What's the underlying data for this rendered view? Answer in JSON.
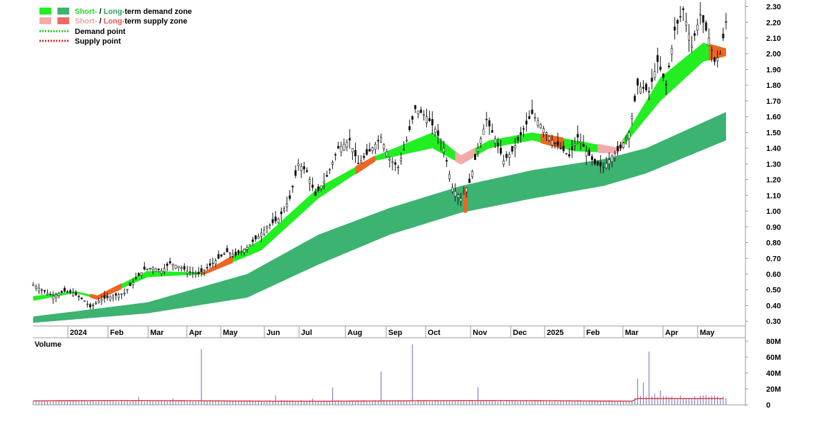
{
  "legend": {
    "demand_zone": {
      "short": "Short-",
      "sep": " / ",
      "long": "Long-",
      "rest": "term demand zone"
    },
    "supply_zone": {
      "short": "Short-",
      "sep": " / ",
      "long": "Long-",
      "rest": "term supply zone"
    },
    "demand_point": "Demand point",
    "supply_point": "Supply point"
  },
  "colors": {
    "short_demand": "#22ee22",
    "long_demand": "#3cb371",
    "short_supply": "#f4aaaa",
    "long_supply": "#ee6a6a",
    "crossover": "#ee6622",
    "demand_point": "#22cc22",
    "supply_point": "#dd2222",
    "volume_bar": "#8080c8",
    "volume_avg": "#dd3333",
    "volume_label": "#6666aa"
  },
  "chart_data": [
    {
      "type": "candlestick",
      "title": "",
      "y_ticks": [
        "2.30",
        "2.20",
        "2.10",
        "2.00",
        "1.90",
        "1.80",
        "1.70",
        "1.60",
        "1.50",
        "1.40",
        "1.30",
        "1.20",
        "1.10",
        "1.00",
        "0.90",
        "0.80",
        "0.70",
        "0.60",
        "0.50",
        "0.40",
        "0.30"
      ],
      "ylim": [
        0.27,
        2.32
      ],
      "x_labels": [
        "2024",
        "Feb",
        "Mar",
        "Apr",
        "May",
        "Jun",
        "Jul",
        "Aug",
        "Sep",
        "Oct",
        "Nov",
        "Dec",
        "2025",
        "Feb",
        "Mar",
        "Apr",
        "May"
      ],
      "price_path": [
        {
          "d": 0,
          "v": 0.53
        },
        {
          "d": 8,
          "v": 0.49
        },
        {
          "d": 14,
          "v": 0.46
        },
        {
          "d": 22,
          "v": 0.49
        },
        {
          "d": 28,
          "v": 0.48
        },
        {
          "d": 36,
          "v": 0.43
        },
        {
          "d": 40,
          "v": 0.39
        },
        {
          "d": 48,
          "v": 0.44
        },
        {
          "d": 56,
          "v": 0.46
        },
        {
          "d": 64,
          "v": 0.48
        },
        {
          "d": 72,
          "v": 0.57
        },
        {
          "d": 78,
          "v": 0.63
        },
        {
          "d": 84,
          "v": 0.64
        },
        {
          "d": 90,
          "v": 0.62
        },
        {
          "d": 96,
          "v": 0.67
        },
        {
          "d": 102,
          "v": 0.65
        },
        {
          "d": 108,
          "v": 0.62
        },
        {
          "d": 116,
          "v": 0.6
        },
        {
          "d": 122,
          "v": 0.64
        },
        {
          "d": 130,
          "v": 0.7
        },
        {
          "d": 136,
          "v": 0.74
        },
        {
          "d": 142,
          "v": 0.72
        },
        {
          "d": 150,
          "v": 0.77
        },
        {
          "d": 158,
          "v": 0.84
        },
        {
          "d": 164,
          "v": 0.9
        },
        {
          "d": 172,
          "v": 0.95
        },
        {
          "d": 180,
          "v": 1.08
        },
        {
          "d": 186,
          "v": 1.3
        },
        {
          "d": 192,
          "v": 1.25
        },
        {
          "d": 198,
          "v": 1.1
        },
        {
          "d": 206,
          "v": 1.22
        },
        {
          "d": 214,
          "v": 1.4
        },
        {
          "d": 222,
          "v": 1.45
        },
        {
          "d": 228,
          "v": 1.3
        },
        {
          "d": 236,
          "v": 1.38
        },
        {
          "d": 244,
          "v": 1.47
        },
        {
          "d": 250,
          "v": 1.33
        },
        {
          "d": 256,
          "v": 1.28
        },
        {
          "d": 262,
          "v": 1.45
        },
        {
          "d": 268,
          "v": 1.65
        },
        {
          "d": 276,
          "v": 1.6
        },
        {
          "d": 282,
          "v": 1.52
        },
        {
          "d": 288,
          "v": 1.4
        },
        {
          "d": 294,
          "v": 1.15
        },
        {
          "d": 300,
          "v": 1.08
        },
        {
          "d": 306,
          "v": 1.18
        },
        {
          "d": 312,
          "v": 1.4
        },
        {
          "d": 318,
          "v": 1.58
        },
        {
          "d": 324,
          "v": 1.46
        },
        {
          "d": 330,
          "v": 1.32
        },
        {
          "d": 336,
          "v": 1.38
        },
        {
          "d": 344,
          "v": 1.52
        },
        {
          "d": 350,
          "v": 1.62
        },
        {
          "d": 356,
          "v": 1.55
        },
        {
          "d": 364,
          "v": 1.45
        },
        {
          "d": 370,
          "v": 1.4
        },
        {
          "d": 376,
          "v": 1.35
        },
        {
          "d": 382,
          "v": 1.47
        },
        {
          "d": 388,
          "v": 1.38
        },
        {
          "d": 394,
          "v": 1.3
        },
        {
          "d": 400,
          "v": 1.28
        },
        {
          "d": 406,
          "v": 1.35
        },
        {
          "d": 412,
          "v": 1.4
        },
        {
          "d": 418,
          "v": 1.5
        },
        {
          "d": 424,
          "v": 1.8
        },
        {
          "d": 432,
          "v": 1.76
        },
        {
          "d": 438,
          "v": 1.95
        },
        {
          "d": 444,
          "v": 1.8
        },
        {
          "d": 450,
          "v": 2.15
        },
        {
          "d": 456,
          "v": 2.28
        },
        {
          "d": 462,
          "v": 2.05
        },
        {
          "d": 468,
          "v": 2.25
        },
        {
          "d": 474,
          "v": 2.1
        },
        {
          "d": 478,
          "v": 1.95
        },
        {
          "d": 482,
          "v": 2.0
        },
        {
          "d": 486,
          "v": 2.2
        }
      ],
      "short_zone": [
        {
          "d": 0,
          "lo": 0.43,
          "hi": 0.46
        },
        {
          "d": 30,
          "lo": 0.48,
          "hi": 0.49
        },
        {
          "d": 45,
          "lo": 0.44,
          "hi": 0.46
        },
        {
          "d": 80,
          "lo": 0.58,
          "hi": 0.62
        },
        {
          "d": 120,
          "lo": 0.6,
          "hi": 0.61
        },
        {
          "d": 160,
          "lo": 0.75,
          "hi": 0.82
        },
        {
          "d": 200,
          "lo": 1.08,
          "hi": 1.15
        },
        {
          "d": 240,
          "lo": 1.32,
          "hi": 1.35
        },
        {
          "d": 280,
          "lo": 1.4,
          "hi": 1.5
        },
        {
          "d": 300,
          "lo": 1.3,
          "hi": 1.35
        },
        {
          "d": 320,
          "lo": 1.4,
          "hi": 1.45
        },
        {
          "d": 350,
          "lo": 1.45,
          "hi": 1.5
        },
        {
          "d": 380,
          "lo": 1.38,
          "hi": 1.45
        },
        {
          "d": 410,
          "lo": 1.37,
          "hi": 1.4
        },
        {
          "d": 440,
          "lo": 1.7,
          "hi": 1.85
        },
        {
          "d": 470,
          "lo": 1.95,
          "hi": 2.07
        },
        {
          "d": 486,
          "lo": 1.99,
          "hi": 2.03
        }
      ],
      "long_zone": [
        {
          "d": 0,
          "lo": 0.29,
          "hi": 0.33
        },
        {
          "d": 80,
          "lo": 0.35,
          "hi": 0.42
        },
        {
          "d": 150,
          "lo": 0.45,
          "hi": 0.6
        },
        {
          "d": 200,
          "lo": 0.66,
          "hi": 0.85
        },
        {
          "d": 250,
          "lo": 0.85,
          "hi": 1.02
        },
        {
          "d": 300,
          "lo": 0.99,
          "hi": 1.16
        },
        {
          "d": 350,
          "lo": 1.08,
          "hi": 1.26
        },
        {
          "d": 400,
          "lo": 1.16,
          "hi": 1.33
        },
        {
          "d": 430,
          "lo": 1.24,
          "hi": 1.4
        },
        {
          "d": 486,
          "lo": 1.45,
          "hi": 1.63
        }
      ],
      "supply_periods": [
        [
          40,
          62
        ],
        [
          118,
          140
        ],
        [
          226,
          240
        ],
        [
          296,
          310
        ],
        [
          356,
          372
        ],
        [
          396,
          414
        ],
        [
          474,
          486
        ]
      ]
    },
    {
      "type": "bar",
      "title": "Volume",
      "y_ticks": [
        "80M",
        "60M",
        "40M",
        "20M",
        "0"
      ],
      "ylim": [
        0,
        80
      ],
      "unit": "M",
      "baseline": 4,
      "moving_average": 5,
      "spikes": [
        {
          "d": 74,
          "v": 10
        },
        {
          "d": 98,
          "v": 8
        },
        {
          "d": 118,
          "v": 70
        },
        {
          "d": 130,
          "v": 6
        },
        {
          "d": 170,
          "v": 12
        },
        {
          "d": 196,
          "v": 8
        },
        {
          "d": 210,
          "v": 22
        },
        {
          "d": 244,
          "v": 42
        },
        {
          "d": 266,
          "v": 76
        },
        {
          "d": 312,
          "v": 22
        },
        {
          "d": 424,
          "v": 33
        },
        {
          "d": 428,
          "v": 28
        },
        {
          "d": 432,
          "v": 67
        },
        {
          "d": 436,
          "v": 14
        },
        {
          "d": 440,
          "v": 18
        },
        {
          "d": 446,
          "v": 10
        },
        {
          "d": 470,
          "v": 12
        },
        {
          "d": 482,
          "v": 8
        }
      ]
    }
  ]
}
